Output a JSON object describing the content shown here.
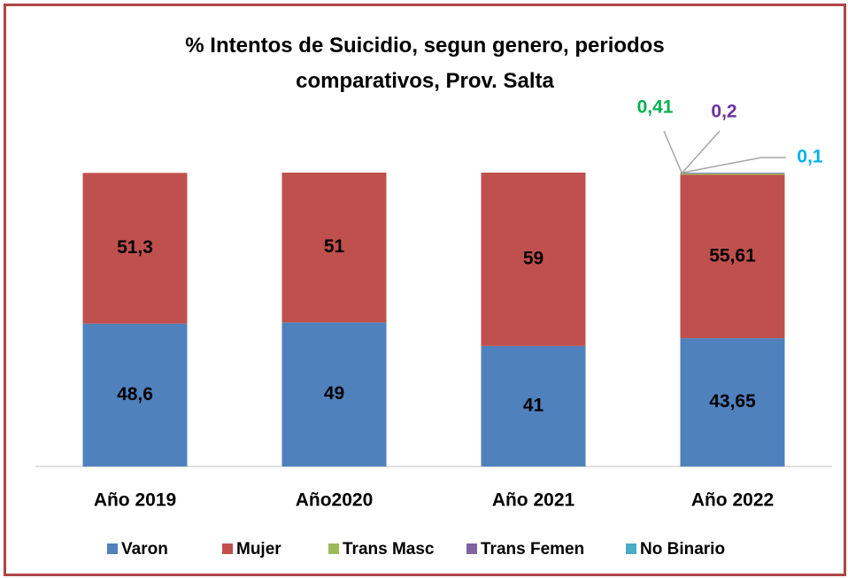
{
  "chart_data": {
    "type": "stacked_bar",
    "title": "% Intentos de Suicidio, segun genero, periodos comparativos, Prov. Salta",
    "categories": [
      "Año 2019",
      "Año2020",
      "Año 2021",
      "Año 2022"
    ],
    "series": [
      {
        "name": "Varon",
        "color": "#4f81bd",
        "values": [
          48.6,
          49,
          41,
          43.65
        ],
        "value_labels": [
          "48,6",
          "49",
          "41",
          "43,65"
        ]
      },
      {
        "name": "Mujer",
        "color": "#c0504d",
        "values": [
          51.3,
          51,
          59,
          55.61
        ],
        "value_labels": [
          "51,3",
          "51",
          "59",
          "55,61"
        ]
      },
      {
        "name": "Trans Masc",
        "color": "#9bbb59",
        "values": [
          null,
          null,
          null,
          0.41
        ],
        "value_labels": [
          null,
          null,
          null,
          "0,41"
        ]
      },
      {
        "name": "Trans Femen",
        "color": "#8064a2",
        "values": [
          null,
          null,
          null,
          0.2
        ],
        "value_labels": [
          null,
          null,
          null,
          "0,2"
        ]
      },
      {
        "name": "No Binario",
        "color": "#4bacc6",
        "values": [
          null,
          null,
          null,
          0.1
        ],
        "value_labels": [
          null,
          null,
          null,
          "0,1"
        ]
      }
    ],
    "legend": "bottom"
  }
}
